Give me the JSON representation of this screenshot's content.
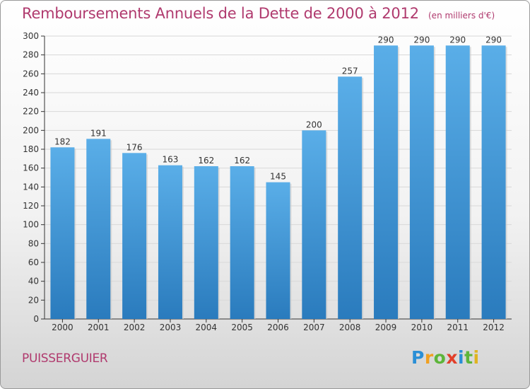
{
  "title": "Remboursements Annuels de la Dette de 2000 à 2012",
  "subtitle": "(en milliers d'€)",
  "commune": "PUISSERGUIER",
  "logo": {
    "letters": [
      "P",
      "r",
      "o",
      "x",
      "i",
      "t",
      "i"
    ],
    "colors": [
      "#2a8fd6",
      "#f0a021",
      "#5db53a",
      "#e23f2a",
      "#2a8fd6",
      "#5db53a",
      "#e0b420"
    ]
  },
  "colors": {
    "bar_top": "#5aaee8",
    "bar_bottom": "#2a7bbd",
    "axis": "#333333",
    "grid": "#d8d8d8",
    "title": "#b03a6e"
  },
  "chart_data": {
    "type": "bar",
    "title": "Remboursements Annuels de la Dette de 2000 à 2012",
    "subtitle": "(en milliers d'€)",
    "categories": [
      "2000",
      "2001",
      "2002",
      "2003",
      "2004",
      "2005",
      "2006",
      "2007",
      "2008",
      "2009",
      "2010",
      "2011",
      "2012"
    ],
    "values": [
      182,
      191,
      176,
      163,
      162,
      162,
      145,
      200,
      257,
      290,
      290,
      290,
      290
    ],
    "ylim": [
      0,
      300
    ],
    "ytick_step": 20,
    "grid": true,
    "xlabel": "",
    "ylabel": ""
  }
}
